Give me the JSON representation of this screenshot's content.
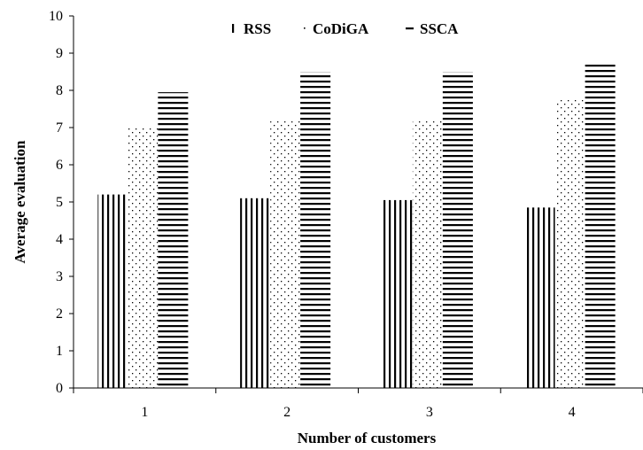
{
  "chart_data": {
    "type": "bar",
    "categories": [
      "1",
      "2",
      "3",
      "4"
    ],
    "series": [
      {
        "name": "RSS",
        "values": [
          5.2,
          5.1,
          5.05,
          4.85
        ],
        "pattern": "vertical-lines"
      },
      {
        "name": "CoDiGA",
        "values": [
          7.0,
          7.2,
          7.2,
          7.75
        ],
        "pattern": "dots"
      },
      {
        "name": "SSCA",
        "values": [
          7.95,
          8.5,
          8.5,
          8.7
        ],
        "pattern": "horizontal-lines"
      }
    ],
    "xlabel": "Number of customers",
    "ylabel": "Average evaluation",
    "ylim": [
      0,
      10
    ],
    "yticks": [
      0,
      1,
      2,
      3,
      4,
      5,
      6,
      7,
      8,
      9,
      10
    ],
    "grid": false,
    "legend_position": "top-center",
    "colors": {
      "ink": "#000000",
      "background": "#ffffff"
    }
  }
}
